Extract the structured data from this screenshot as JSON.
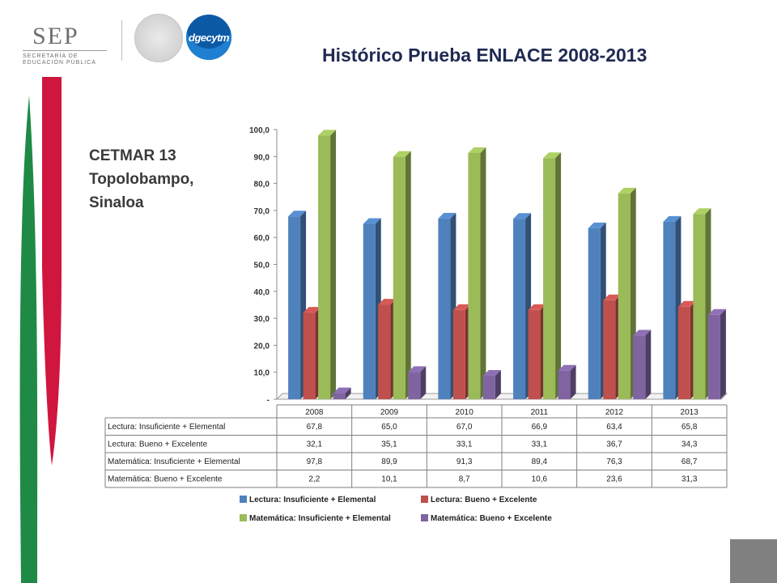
{
  "header": {
    "sep_wordmark": "SEP",
    "sep_line1": "SECRETARÍA DE",
    "sep_line2": "EDUCACIÓN PÚBLICA",
    "dgecytm_label": "dgecytm",
    "title": "Histórico Prueba ENLACE 2008-2013"
  },
  "subtitle": {
    "line1": "CETMAR 13",
    "line2": "Topolobampo,",
    "line3": "Sinaloa"
  },
  "colors": {
    "lectura_insuf": "#4f81bd",
    "lectura_bueno": "#c0504d",
    "mate_insuf": "#9bbb59",
    "mate_bueno": "#8064a2",
    "decor_green": "#1e8a46",
    "decor_red": "#d0153f"
  },
  "chart_data": {
    "type": "bar",
    "categories": [
      "2008",
      "2009",
      "2010",
      "2011",
      "2012",
      "2013"
    ],
    "series": [
      {
        "name": "Lectura: Insuficiente + Elemental",
        "values": [
          67.8,
          65.0,
          67.0,
          66.9,
          63.4,
          65.8
        ],
        "labels": [
          "67,8",
          "65,0",
          "67,0",
          "66,9",
          "63,4",
          "65,8"
        ]
      },
      {
        "name": "Lectura: Bueno + Excelente",
        "values": [
          32.1,
          35.1,
          33.1,
          33.1,
          36.7,
          34.3
        ],
        "labels": [
          "32,1",
          "35,1",
          "33,1",
          "33,1",
          "36,7",
          "34,3"
        ]
      },
      {
        "name": "Matemática: Insuficiente + Elemental",
        "values": [
          97.8,
          89.9,
          91.3,
          89.4,
          76.3,
          68.7
        ],
        "labels": [
          "97,8",
          "89,9",
          "91,3",
          "89,4",
          "76,3",
          "68,7"
        ]
      },
      {
        "name": "Matemática: Bueno + Excelente",
        "values": [
          2.2,
          10.1,
          8.7,
          10.6,
          23.6,
          31.3
        ],
        "labels": [
          "2,2",
          "10,1",
          "8,7",
          "10,6",
          "23,6",
          "31,3"
        ]
      }
    ],
    "y_ticks": [
      "-",
      "10,0",
      "20,0",
      "30,0",
      "40,0",
      "50,0",
      "60,0",
      "70,0",
      "80,0",
      "90,0",
      "100,0"
    ],
    "ylim": [
      0,
      100
    ],
    "grid": false,
    "legend_position": "bottom",
    "data_table": true
  }
}
